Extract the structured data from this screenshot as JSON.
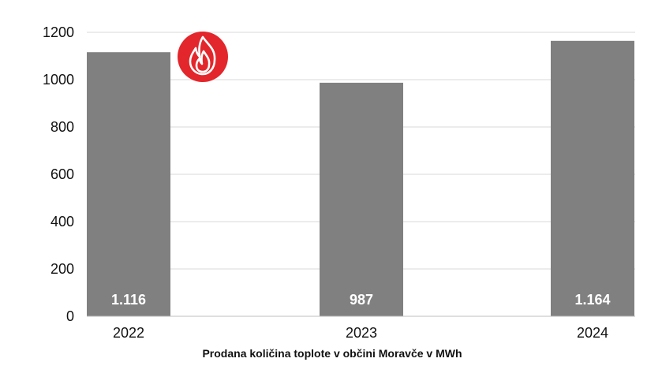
{
  "chart_data": {
    "type": "bar",
    "categories": [
      "2022",
      "2023",
      "2024"
    ],
    "values": [
      1116,
      987,
      1164
    ],
    "data_labels": [
      "1.116",
      "987",
      "1.164"
    ],
    "title": "",
    "xlabel": "Prodana količina toplote v občini Moravče v MWh",
    "ylabel": "",
    "ylim": [
      0,
      1200
    ],
    "yticks": [
      "0",
      "200",
      "400",
      "600",
      "800",
      "1000",
      "1200"
    ],
    "grid": true,
    "legend": "none"
  },
  "colors": {
    "bar": "#808080",
    "grid": "#d9d9d9",
    "axis": "#bfbfbf",
    "badge": "#e3262b",
    "badge_icon": "#ffffff"
  },
  "badge": {
    "icon": "flame-icon"
  }
}
